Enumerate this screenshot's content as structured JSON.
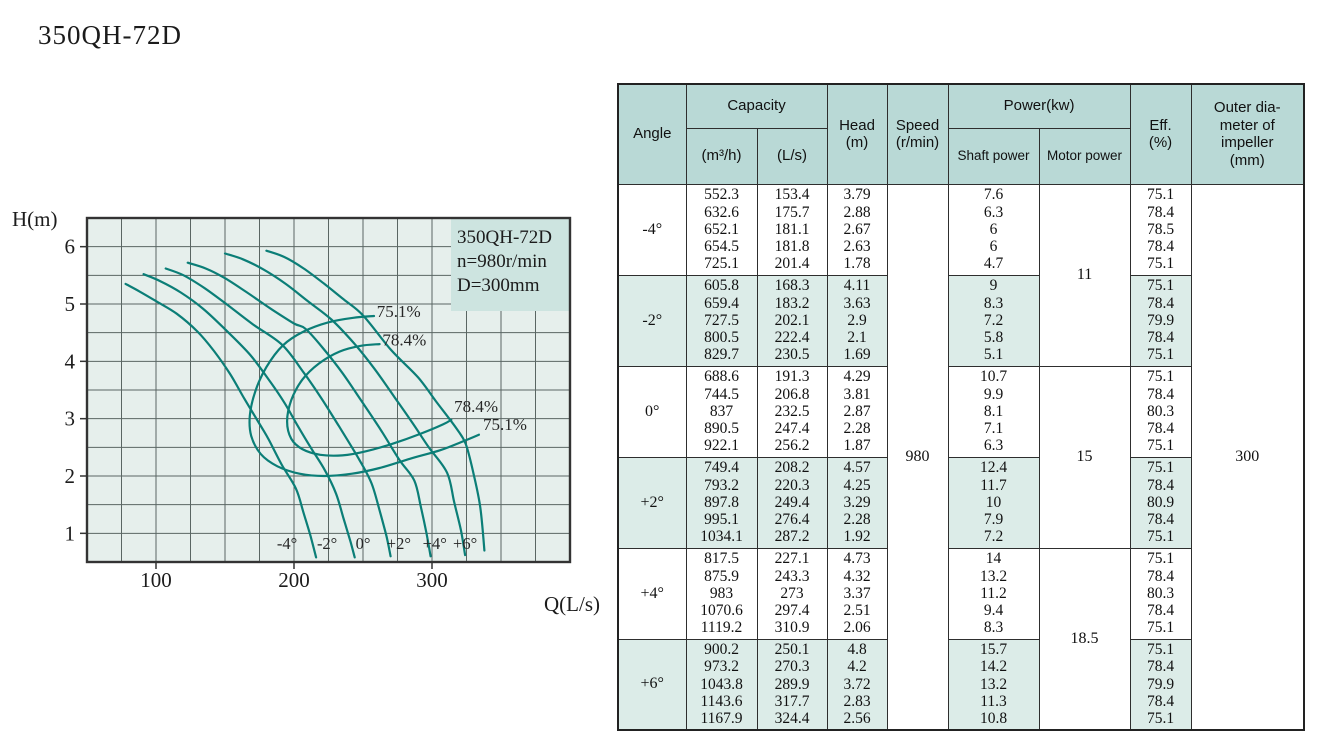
{
  "page_title": "350QH-72D",
  "chart_data": {
    "type": "line",
    "title": "350QH-72D pump performance curves",
    "xlabel": "Q(L/s)",
    "ylabel": "H(m)",
    "xlim": [
      50,
      400
    ],
    "ylim": [
      0.5,
      6.5
    ],
    "x_ticks": [
      100,
      200,
      300
    ],
    "y_ticks": [
      1,
      2,
      3,
      4,
      5,
      6
    ],
    "grid": "on",
    "annotation_box": [
      "350QH-72D",
      "n=980r/min",
      "D=300mm"
    ],
    "series": [
      {
        "name": "-4°",
        "points": [
          [
            78,
            5.35
          ],
          [
            88,
            5.22
          ],
          [
            100,
            5.05
          ],
          [
            115,
            4.83
          ],
          [
            130,
            4.52
          ],
          [
            142,
            4.18
          ],
          [
            153.4,
            3.79
          ],
          [
            164,
            3.35
          ],
          [
            175.7,
            2.88
          ],
          [
            181.8,
            2.63
          ],
          [
            191,
            2.2
          ],
          [
            201.4,
            1.78
          ],
          [
            207,
            1.35
          ],
          [
            212,
            0.95
          ],
          [
            216,
            0.58
          ]
        ]
      },
      {
        "name": "-2°",
        "points": [
          [
            91,
            5.52
          ],
          [
            103,
            5.4
          ],
          [
            118,
            5.2
          ],
          [
            134,
            4.92
          ],
          [
            150,
            4.56
          ],
          [
            168.3,
            4.11
          ],
          [
            183.2,
            3.63
          ],
          [
            193,
            3.28
          ],
          [
            202.1,
            2.9
          ],
          [
            212,
            2.5
          ],
          [
            222.4,
            2.1
          ],
          [
            230.5,
            1.69
          ],
          [
            236,
            1.25
          ],
          [
            241,
            0.85
          ],
          [
            244,
            0.58
          ]
        ]
      },
      {
        "name": "0°",
        "points": [
          [
            107,
            5.62
          ],
          [
            120,
            5.5
          ],
          [
            135,
            5.28
          ],
          [
            152,
            4.98
          ],
          [
            170,
            4.65
          ],
          [
            191.3,
            4.29
          ],
          [
            206.8,
            3.81
          ],
          [
            220,
            3.35
          ],
          [
            232.5,
            2.87
          ],
          [
            247.4,
            2.28
          ],
          [
            256.2,
            1.87
          ],
          [
            262,
            1.4
          ],
          [
            267,
            0.95
          ],
          [
            270,
            0.6
          ]
        ]
      },
      {
        "name": "+2°",
        "points": [
          [
            123,
            5.72
          ],
          [
            136,
            5.62
          ],
          [
            150,
            5.45
          ],
          [
            166,
            5.2
          ],
          [
            183,
            4.92
          ],
          [
            200,
            4.66
          ],
          [
            208.2,
            4.57
          ],
          [
            220.3,
            4.25
          ],
          [
            235,
            3.8
          ],
          [
            249.4,
            3.29
          ],
          [
            263,
            2.8
          ],
          [
            276.4,
            2.28
          ],
          [
            287.2,
            1.92
          ],
          [
            292,
            1.45
          ],
          [
            296,
            1.0
          ],
          [
            299,
            0.6
          ]
        ]
      },
      {
        "name": "+4°",
        "points": [
          [
            150,
            5.88
          ],
          [
            163,
            5.78
          ],
          [
            178,
            5.6
          ],
          [
            194,
            5.35
          ],
          [
            210,
            5.05
          ],
          [
            227.1,
            4.73
          ],
          [
            243.3,
            4.32
          ],
          [
            258,
            3.88
          ],
          [
            273,
            3.37
          ],
          [
            286,
            2.92
          ],
          [
            297.4,
            2.51
          ],
          [
            310.9,
            2.06
          ],
          [
            316,
            1.55
          ],
          [
            321,
            1.05
          ],
          [
            324,
            0.62
          ]
        ]
      },
      {
        "name": "+6°",
        "points": [
          [
            180,
            5.93
          ],
          [
            193,
            5.82
          ],
          [
            207,
            5.62
          ],
          [
            222,
            5.35
          ],
          [
            236,
            5.08
          ],
          [
            250.1,
            4.8
          ],
          [
            270.3,
            4.2
          ],
          [
            289.9,
            3.72
          ],
          [
            303,
            3.3
          ],
          [
            317.7,
            2.83
          ],
          [
            324.4,
            2.56
          ],
          [
            330,
            2.05
          ],
          [
            335,
            1.45
          ],
          [
            338,
            0.7
          ]
        ]
      }
    ],
    "efficiency_contours": [
      {
        "label": "75.1%",
        "points": [
          [
            258,
            4.79
          ],
          [
            243,
            4.76
          ],
          [
            225,
            4.68
          ],
          [
            207,
            4.52
          ],
          [
            192,
            4.28
          ],
          [
            180,
            3.9
          ],
          [
            172,
            3.48
          ],
          [
            168,
            3.05
          ],
          [
            169,
            2.7
          ],
          [
            176,
            2.38
          ],
          [
            188,
            2.17
          ],
          [
            204,
            2.04
          ],
          [
            222,
            2.0
          ],
          [
            242,
            2.04
          ],
          [
            262,
            2.14
          ],
          [
            284,
            2.3
          ],
          [
            306,
            2.45
          ],
          [
            322,
            2.6
          ],
          [
            334,
            2.72
          ]
        ]
      },
      {
        "label": "78.4%",
        "points": [
          [
            262,
            4.3
          ],
          [
            248,
            4.27
          ],
          [
            233,
            4.17
          ],
          [
            218,
            3.96
          ],
          [
            206,
            3.68
          ],
          [
            198,
            3.32
          ],
          [
            195,
            2.95
          ],
          [
            198,
            2.65
          ],
          [
            206,
            2.47
          ],
          [
            219,
            2.37
          ],
          [
            235,
            2.36
          ],
          [
            252,
            2.43
          ],
          [
            271,
            2.56
          ],
          [
            291,
            2.73
          ],
          [
            308,
            2.9
          ],
          [
            314,
            2.98
          ]
        ]
      }
    ],
    "efficiency_labels": [
      {
        "text": "75.1%",
        "q": 260,
        "h": 4.77
      },
      {
        "text": "78.4%",
        "q": 264,
        "h": 4.28
      },
      {
        "text": "78.4%",
        "q": 316,
        "h": 3.12
      },
      {
        "text": "75.1%",
        "q": 337,
        "h": 2.8
      }
    ],
    "angle_labels": [
      {
        "text": "-4°",
        "q": 195,
        "h": 0.73
      },
      {
        "text": "-2°",
        "q": 224,
        "h": 0.73
      },
      {
        "text": "0°",
        "q": 250,
        "h": 0.73
      },
      {
        "text": "+2°",
        "q": 276,
        "h": 0.73
      },
      {
        "text": "+4°",
        "q": 302,
        "h": 0.73
      },
      {
        "text": "+6°",
        "q": 324,
        "h": 0.73
      }
    ]
  },
  "table": {
    "header": {
      "angle": "Angle",
      "capacity": "Capacity",
      "m3h": "(m³/h)",
      "ls": "(L/s)",
      "head": "Head\n(m)",
      "speed": "Speed\n(r/min)",
      "power": "Power(kw)",
      "shaft": "Shaft power",
      "motor": "Motor power",
      "eff": "Eff.\n(%)",
      "outer": "Outer dia-\nmeter of\nimpeller\n(mm)"
    },
    "speed_value": "980",
    "outer_diameter_value": "300",
    "motor_power_values": [
      "11",
      "15",
      "18.5"
    ],
    "groups": [
      {
        "angle": "-4°",
        "m3h": [
          "552.3",
          "632.6",
          "652.1",
          "654.5",
          "725.1"
        ],
        "ls": [
          "153.4",
          "175.7",
          "181.1",
          "181.8",
          "201.4"
        ],
        "head": [
          "3.79",
          "2.88",
          "2.67",
          "2.63",
          "1.78"
        ],
        "shaft": [
          "7.6",
          "6.3",
          "6",
          "6",
          "4.7"
        ],
        "eff": [
          "75.1",
          "78.4",
          "78.5",
          "78.4",
          "75.1"
        ]
      },
      {
        "angle": "-2°",
        "m3h": [
          "605.8",
          "659.4",
          "727.5",
          "800.5",
          "829.7"
        ],
        "ls": [
          "168.3",
          "183.2",
          "202.1",
          "222.4",
          "230.5"
        ],
        "head": [
          "4.11",
          "3.63",
          "2.9",
          "2.1",
          "1.69"
        ],
        "shaft": [
          "9",
          "8.3",
          "7.2",
          "5.8",
          "5.1"
        ],
        "eff": [
          "75.1",
          "78.4",
          "79.9",
          "78.4",
          "75.1"
        ]
      },
      {
        "angle": "0°",
        "m3h": [
          "688.6",
          "744.5",
          "837",
          "890.5",
          "922.1"
        ],
        "ls": [
          "191.3",
          "206.8",
          "232.5",
          "247.4",
          "256.2"
        ],
        "head": [
          "4.29",
          "3.81",
          "2.87",
          "2.28",
          "1.87"
        ],
        "shaft": [
          "10.7",
          "9.9",
          "8.1",
          "7.1",
          "6.3"
        ],
        "eff": [
          "75.1",
          "78.4",
          "80.3",
          "78.4",
          "75.1"
        ]
      },
      {
        "angle": "+2°",
        "m3h": [
          "749.4",
          "793.2",
          "897.8",
          "995.1",
          "1034.1"
        ],
        "ls": [
          "208.2",
          "220.3",
          "249.4",
          "276.4",
          "287.2"
        ],
        "head": [
          "4.57",
          "4.25",
          "3.29",
          "2.28",
          "1.92"
        ],
        "shaft": [
          "12.4",
          "11.7",
          "10",
          "7.9",
          "7.2"
        ],
        "eff": [
          "75.1",
          "78.4",
          "80.9",
          "78.4",
          "75.1"
        ]
      },
      {
        "angle": "+4°",
        "m3h": [
          "817.5",
          "875.9",
          "983",
          "1070.6",
          "1119.2"
        ],
        "ls": [
          "227.1",
          "243.3",
          "273",
          "297.4",
          "310.9"
        ],
        "head": [
          "4.73",
          "4.32",
          "3.37",
          "2.51",
          "2.06"
        ],
        "shaft": [
          "14",
          "13.2",
          "11.2",
          "9.4",
          "8.3"
        ],
        "eff": [
          "75.1",
          "78.4",
          "80.3",
          "78.4",
          "75.1"
        ]
      },
      {
        "angle": "+6°",
        "m3h": [
          "900.2",
          "973.2",
          "1043.8",
          "1143.6",
          "1167.9"
        ],
        "ls": [
          "250.1",
          "270.3",
          "289.9",
          "317.7",
          "324.4"
        ],
        "head": [
          "4.8",
          "4.2",
          "3.72",
          "2.83",
          "2.56"
        ],
        "shaft": [
          "15.7",
          "14.2",
          "13.2",
          "11.3",
          "10.8"
        ],
        "eff": [
          "75.1",
          "78.4",
          "79.9",
          "78.4",
          "75.1"
        ]
      }
    ]
  },
  "colors": {
    "curve": "#0b7e77",
    "chart_bg": "#e6efec",
    "legend_bg": "#cde4e0",
    "header_bg": "#b9d9d6",
    "alt_row_bg": "#dcece8"
  }
}
